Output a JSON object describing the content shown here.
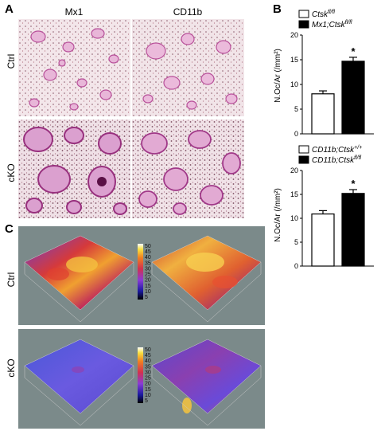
{
  "panels": {
    "a": {
      "letter": "A",
      "col_labels": [
        "Mx1",
        "CD11b"
      ],
      "row_labels": [
        "Ctrl",
        "cKO"
      ]
    },
    "b": {
      "letter": "B"
    },
    "c": {
      "letter": "C",
      "row_labels": [
        "Ctrl",
        "cKO"
      ],
      "colorbar_ticks": [
        "50",
        "45",
        "40",
        "35",
        "30",
        "25",
        "20",
        "15",
        "10",
        "5"
      ]
    }
  },
  "colors": {
    "bar_open": "#ffffff",
    "bar_filled": "#000000",
    "bg_3d": "#7b8a8a"
  },
  "chart_data": [
    {
      "type": "bar",
      "title": "",
      "ylabel": "N.Oc/Ar (/mm²)",
      "ylim": [
        0,
        20
      ],
      "yticks": [
        0,
        5,
        10,
        15,
        20
      ],
      "legend": [
        {
          "prefix": "Ctsk",
          "sup": "fl/fl"
        },
        {
          "prefix": "Mx1;Ctsk",
          "sup": "fl/fl"
        }
      ],
      "values": [
        8.1,
        14.7
      ],
      "errors": [
        0.6,
        0.8
      ],
      "significance": [
        "",
        "*"
      ]
    },
    {
      "type": "bar",
      "title": "",
      "ylabel": "N.Oc/Ar (/mm²)",
      "ylim": [
        0,
        20
      ],
      "yticks": [
        0,
        5,
        10,
        15,
        20
      ],
      "legend": [
        {
          "prefix": "CD11b;Ctsk",
          "sup": "+/+"
        },
        {
          "prefix": "CD11b;Ctsk",
          "sup": "fl/fl"
        }
      ],
      "values": [
        10.9,
        15.2
      ],
      "errors": [
        0.7,
        0.8
      ],
      "significance": [
        "",
        "*"
      ]
    }
  ]
}
